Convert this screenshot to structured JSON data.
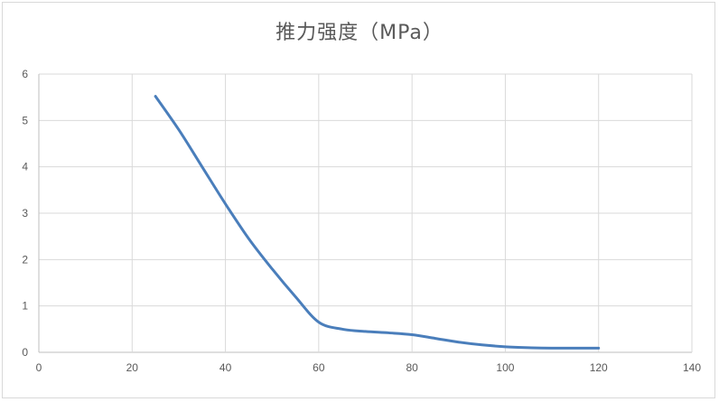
{
  "chart_data": {
    "type": "line",
    "title": "推力强度（MPa）",
    "xlabel": "",
    "ylabel": "",
    "xlim": [
      0,
      140
    ],
    "ylim": [
      0,
      6
    ],
    "x_ticks": [
      0,
      20,
      40,
      60,
      80,
      100,
      120,
      140
    ],
    "y_ticks": [
      0,
      1,
      2,
      3,
      4,
      5,
      6
    ],
    "grid": true,
    "legend": "none",
    "series": [
      {
        "color": "#4a7ebb",
        "points": [
          [
            25,
            5.52
          ],
          [
            30,
            4.8
          ],
          [
            35,
            4.0
          ],
          [
            40,
            3.2
          ],
          [
            45,
            2.45
          ],
          [
            50,
            1.8
          ],
          [
            55,
            1.2
          ],
          [
            60,
            0.65
          ],
          [
            65,
            0.5
          ],
          [
            70,
            0.45
          ],
          [
            75,
            0.42
          ],
          [
            80,
            0.38
          ],
          [
            85,
            0.3
          ],
          [
            90,
            0.22
          ],
          [
            95,
            0.16
          ],
          [
            100,
            0.12
          ],
          [
            105,
            0.1
          ],
          [
            110,
            0.09
          ],
          [
            120,
            0.09
          ]
        ]
      }
    ]
  }
}
